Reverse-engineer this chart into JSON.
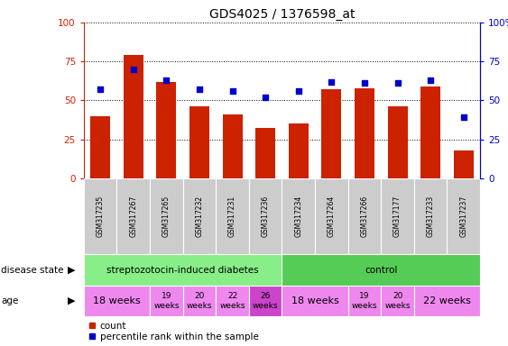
{
  "title": "GDS4025 / 1376598_at",
  "samples": [
    "GSM317235",
    "GSM317267",
    "GSM317265",
    "GSM317232",
    "GSM317231",
    "GSM317236",
    "GSM317234",
    "GSM317264",
    "GSM317266",
    "GSM317177",
    "GSM317233",
    "GSM317237"
  ],
  "counts": [
    40,
    79,
    62,
    46,
    41,
    32,
    35,
    57,
    58,
    46,
    59,
    18
  ],
  "percentiles": [
    57,
    70,
    63,
    57,
    56,
    52,
    56,
    62,
    61,
    61,
    63,
    39
  ],
  "bar_color": "#cc2200",
  "dot_color": "#0000cc",
  "sample_bg": "#cccccc",
  "disease_color_strep": "#88ee88",
  "disease_color_control": "#55cc55",
  "age_color_light": "#ee88ee",
  "age_color_dark": "#cc44cc",
  "strep_label": "streptozotocin-induced diabetes",
  "control_label": "control",
  "disease_state_label": "disease state",
  "age_label": "age",
  "age_groups": [
    {
      "label": "18 weeks",
      "si": 0,
      "ei": 1,
      "color": "light",
      "fs": 8
    },
    {
      "label": "19\nweeks",
      "si": 2,
      "ei": 2,
      "color": "light",
      "fs": 6.5
    },
    {
      "label": "20\nweeks",
      "si": 3,
      "ei": 3,
      "color": "light",
      "fs": 6.5
    },
    {
      "label": "22\nweeks",
      "si": 4,
      "ei": 4,
      "color": "light",
      "fs": 6.5
    },
    {
      "label": "26\nweeks",
      "si": 5,
      "ei": 5,
      "color": "dark",
      "fs": 6.5
    },
    {
      "label": "18 weeks",
      "si": 6,
      "ei": 7,
      "color": "light",
      "fs": 8
    },
    {
      "label": "19\nweeks",
      "si": 8,
      "ei": 8,
      "color": "light",
      "fs": 6.5
    },
    {
      "label": "20\nweeks",
      "si": 9,
      "ei": 9,
      "color": "light",
      "fs": 6.5
    },
    {
      "label": "22 weeks",
      "si": 10,
      "ei": 11,
      "color": "light",
      "fs": 8
    }
  ],
  "legend_count": "count",
  "legend_percentile": "percentile rank within the sample"
}
